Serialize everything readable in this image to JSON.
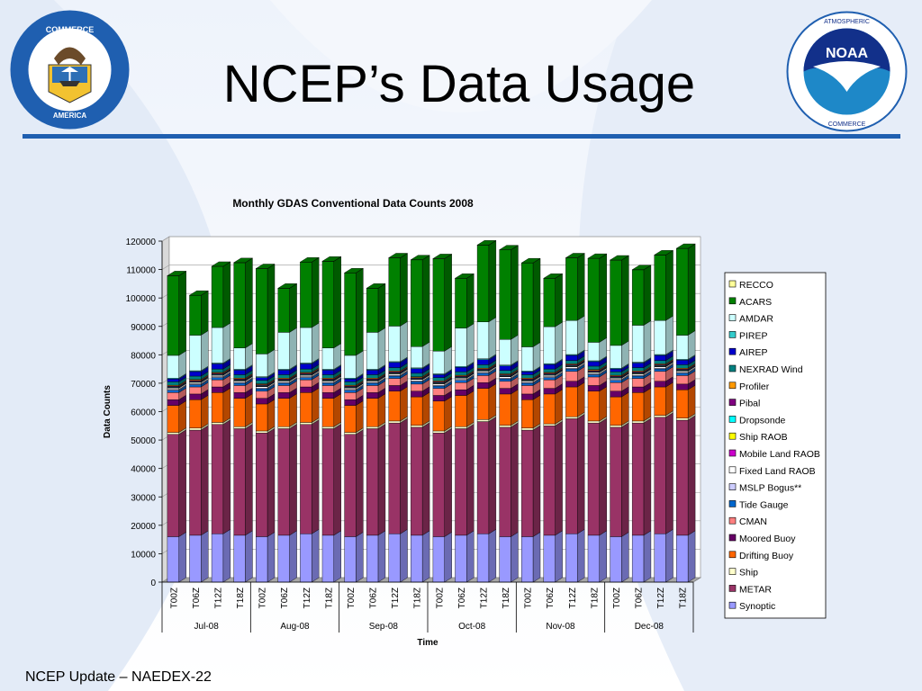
{
  "slide": {
    "title": "NCEP’s Data Usage",
    "footer": "NCEP Update – NAEDEX-22",
    "accent_color": "#1f5fb0",
    "left_logo": {
      "icon": "department-of-commerce-seal-icon",
      "text": "DEPARTMENT OF COMMERCE · UNITED STATES OF AMERICA"
    },
    "right_logo": {
      "icon": "noaa-logo-icon",
      "center_text": "NOAA",
      "ring_text": "NATIONAL OCEANIC AND ATMOSPHERIC ADMINISTRATION · U.S. DEPARTMENT OF COMMERCE"
    }
  },
  "chart_data": {
    "type": "bar",
    "stacked": true,
    "three_d": true,
    "title": "Monthly GDAS Conventional Data Counts 2008",
    "xlabel": "Time",
    "ylabel": "Data Counts",
    "ylim": [
      0,
      120000
    ],
    "yticks": [
      0,
      10000,
      20000,
      30000,
      40000,
      50000,
      60000,
      70000,
      80000,
      90000,
      100000,
      110000,
      120000
    ],
    "ytick_labels": [
      "0",
      "10000",
      "20000",
      "30000",
      "40000",
      "50000",
      "60000",
      "70000",
      "80000",
      "90000",
      "100000",
      "110000",
      "120000"
    ],
    "grid": true,
    "legend_position": "right",
    "categories": [
      "T00Z",
      "T06Z",
      "T12Z",
      "T18Z",
      "T00Z",
      "T06Z",
      "T12Z",
      "T18Z",
      "T00Z",
      "T06Z",
      "T12Z",
      "T18Z",
      "T00Z",
      "T06Z",
      "T12Z",
      "T18Z",
      "T00Z",
      "T06Z",
      "T12Z",
      "T18Z",
      "T00Z",
      "T06Z",
      "T12Z",
      "T18Z"
    ],
    "groups": [
      {
        "label": "Jul-08",
        "span": 4
      },
      {
        "label": "Aug-08",
        "span": 4
      },
      {
        "label": "Sep-08",
        "span": 4
      },
      {
        "label": "Oct-08",
        "span": 4
      },
      {
        "label": "Nov-08",
        "span": 4
      },
      {
        "label": "Dec-08",
        "span": 4
      }
    ],
    "series": [
      {
        "name": "Synoptic",
        "color": "#9999ff",
        "values": [
          16000,
          16500,
          17000,
          16500,
          16000,
          16500,
          17000,
          16500,
          16000,
          16500,
          17000,
          16500,
          16000,
          16500,
          17000,
          16000,
          16000,
          16500,
          17000,
          16500,
          16000,
          16500,
          17000,
          16500
        ]
      },
      {
        "name": "METAR",
        "color": "#993366",
        "values": [
          36000,
          37000,
          38500,
          37500,
          36500,
          37500,
          38500,
          37500,
          36000,
          37500,
          39000,
          38000,
          36500,
          37500,
          39500,
          38500,
          37500,
          38500,
          40500,
          39500,
          38500,
          39500,
          41000,
          40500
        ]
      },
      {
        "name": "Ship",
        "color": "#ffffcc",
        "values": [
          700,
          700,
          700,
          700,
          700,
          700,
          700,
          700,
          700,
          700,
          700,
          700,
          700,
          700,
          700,
          700,
          700,
          700,
          700,
          700,
          700,
          700,
          700,
          700
        ]
      },
      {
        "name": "Drifting Buoy",
        "color": "#ff6600",
        "values": [
          9500,
          10000,
          10500,
          10000,
          9500,
          10000,
          10500,
          10000,
          9500,
          10000,
          10500,
          10000,
          10500,
          11000,
          11000,
          11000,
          10000,
          10500,
          10500,
          10500,
          10000,
          10000,
          10000,
          10000
        ]
      },
      {
        "name": "Moored Buoy",
        "color": "#660066",
        "values": [
          2000,
          2000,
          2000,
          2000,
          2000,
          2000,
          2000,
          2000,
          2000,
          2000,
          2000,
          2000,
          2000,
          2000,
          2000,
          2000,
          2000,
          2000,
          2000,
          2000,
          2000,
          2000,
          2000,
          2000
        ]
      },
      {
        "name": "CMAN",
        "color": "#ff8080",
        "values": [
          2500,
          2500,
          2500,
          2500,
          2500,
          2500,
          2500,
          2500,
          2500,
          2500,
          2500,
          2500,
          2500,
          2500,
          2500,
          2500,
          3000,
          3000,
          3500,
          3000,
          3000,
          3000,
          3500,
          3000
        ]
      },
      {
        "name": "Tide Gauge",
        "color": "#0066cc",
        "values": [
          800,
          800,
          800,
          800,
          800,
          800,
          800,
          800,
          800,
          800,
          800,
          800,
          800,
          800,
          800,
          800,
          800,
          800,
          800,
          800,
          800,
          800,
          800,
          800
        ]
      },
      {
        "name": "MSLP Bogus**",
        "color": "#ccccff",
        "values": [
          300,
          300,
          300,
          300,
          300,
          300,
          300,
          300,
          300,
          300,
          300,
          300,
          300,
          300,
          300,
          300,
          300,
          300,
          300,
          300,
          300,
          300,
          300,
          300
        ]
      },
      {
        "name": "Fixed Land RAOB",
        "color": "#ffffff",
        "values": [
          500,
          500,
          500,
          500,
          500,
          500,
          500,
          500,
          500,
          500,
          500,
          500,
          500,
          500,
          500,
          500,
          500,
          500,
          500,
          500,
          500,
          500,
          500,
          500
        ]
      },
      {
        "name": "Mobile Land RAOB",
        "color": "#cc00cc",
        "values": [
          100,
          100,
          100,
          100,
          100,
          100,
          100,
          100,
          100,
          100,
          100,
          100,
          100,
          100,
          100,
          100,
          100,
          100,
          100,
          100,
          100,
          100,
          100,
          100
        ]
      },
      {
        "name": "Ship RAOB",
        "color": "#ffff00",
        "values": [
          100,
          100,
          100,
          100,
          100,
          100,
          100,
          100,
          100,
          100,
          100,
          100,
          100,
          100,
          100,
          100,
          100,
          100,
          100,
          100,
          100,
          100,
          100,
          100
        ]
      },
      {
        "name": "Dropsonde",
        "color": "#00ffff",
        "values": [
          200,
          200,
          200,
          200,
          200,
          200,
          200,
          200,
          200,
          200,
          200,
          200,
          200,
          200,
          200,
          200,
          200,
          200,
          200,
          200,
          200,
          200,
          200,
          200
        ]
      },
      {
        "name": "Pibal",
        "color": "#800080",
        "values": [
          300,
          300,
          300,
          300,
          300,
          300,
          300,
          300,
          300,
          300,
          300,
          300,
          300,
          300,
          300,
          300,
          300,
          300,
          300,
          300,
          300,
          300,
          300,
          300
        ]
      },
      {
        "name": "Profiler",
        "color": "#ff9900",
        "values": [
          300,
          300,
          300,
          300,
          300,
          300,
          300,
          300,
          300,
          300,
          300,
          300,
          300,
          300,
          300,
          300,
          300,
          300,
          300,
          300,
          300,
          300,
          300,
          300
        ]
      },
      {
        "name": "NEXRAD Wind",
        "color": "#008080",
        "values": [
          1200,
          1200,
          1200,
          1200,
          1200,
          1200,
          1200,
          1200,
          1200,
          1200,
          1200,
          1200,
          1200,
          1200,
          1200,
          1200,
          1200,
          1200,
          1200,
          1200,
          1200,
          1200,
          1200,
          1200
        ]
      },
      {
        "name": "AIREP",
        "color": "#0000cc",
        "values": [
          1000,
          1600,
          1800,
          1600,
          1000,
          1600,
          1800,
          1600,
          1000,
          1600,
          1800,
          1600,
          1000,
          1600,
          1800,
          1600,
          1000,
          1600,
          1800,
          1600,
          1000,
          1600,
          1800,
          1600
        ]
      },
      {
        "name": "PIREP",
        "color": "#33cccc",
        "values": [
          300,
          300,
          300,
          300,
          300,
          300,
          300,
          300,
          300,
          300,
          300,
          300,
          300,
          300,
          300,
          300,
          300,
          300,
          300,
          300,
          300,
          300,
          300,
          300
        ]
      },
      {
        "name": "AMDAR",
        "color": "#ccffff",
        "values": [
          8000,
          12500,
          12500,
          7500,
          8000,
          13000,
          12500,
          7500,
          8000,
          13000,
          12500,
          7500,
          8000,
          13500,
          13000,
          9000,
          8500,
          13000,
          12000,
          6500,
          8000,
          13000,
          12000,
          8500
        ]
      },
      {
        "name": "ACARS",
        "color": "#008000",
        "values": [
          28000,
          14000,
          21500,
          30000,
          30000,
          15500,
          23000,
          30500,
          29000,
          15500,
          24000,
          30500,
          32500,
          17500,
          27000,
          31500,
          29500,
          17000,
          22000,
          29500,
          30000,
          19500,
          23000,
          30500
        ]
      },
      {
        "name": "RECCO",
        "color": "#ffff99",
        "values": [
          50,
          50,
          50,
          50,
          50,
          50,
          50,
          50,
          50,
          50,
          50,
          50,
          50,
          50,
          50,
          50,
          50,
          50,
          50,
          50,
          50,
          50,
          50,
          50
        ]
      }
    ]
  }
}
